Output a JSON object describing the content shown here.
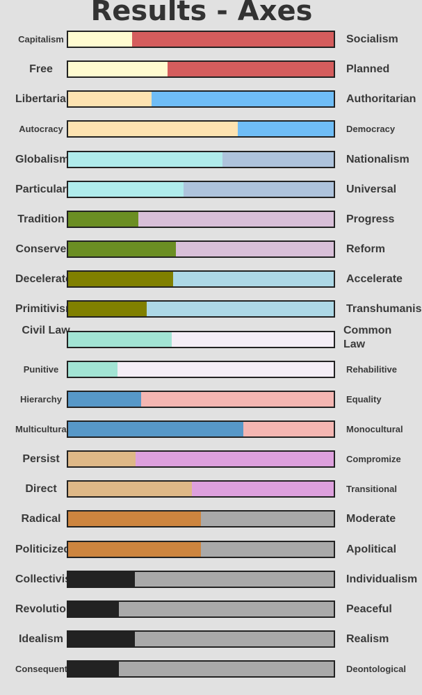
{
  "title": "Results - Axes",
  "chart_data": {
    "type": "bar",
    "title": "Results - Axes",
    "xlim": [
      0,
      100
    ],
    "rows": [
      {
        "left": "Capitalism",
        "right": "Socialism",
        "value": 24,
        "left_color": "#fffbd0",
        "right_color": "#d45d5d"
      },
      {
        "left": "Free",
        "right": "Planned",
        "value": 37.5,
        "left_color": "#fffbd0",
        "right_color": "#d45d5d"
      },
      {
        "left": "Libertarian",
        "right": "Authoritarian",
        "value": 31.5,
        "left_color": "#fde3b1",
        "right_color": "#6fbdf6"
      },
      {
        "left": "Autocracy",
        "right": "Democracy",
        "value": 64,
        "left_color": "#fde3b1",
        "right_color": "#6fbdf6"
      },
      {
        "left": "Globalism",
        "right": "Nationalism",
        "value": 58,
        "left_color": "#b0ecec",
        "right_color": "#aec3dc"
      },
      {
        "left": "Particular",
        "right": "Universal",
        "value": 43.5,
        "left_color": "#b0ecec",
        "right_color": "#aec3dc"
      },
      {
        "left": "Tradition",
        "right": "Progress",
        "value": 26.5,
        "left_color": "#6b8e23",
        "right_color": "#d8bfd8"
      },
      {
        "left": "Conserve",
        "right": "Reform",
        "value": 40.5,
        "left_color": "#6b8e23",
        "right_color": "#d8bfd8"
      },
      {
        "left": "Decelerate",
        "right": "Accelerate",
        "value": 39.5,
        "left_color": "#808000",
        "right_color": "#add8e6"
      },
      {
        "left": "Primitivism",
        "right": "Transhumanism",
        "value": 29.5,
        "left_color": "#808000",
        "right_color": "#add8e6"
      },
      {
        "left": "Civil Law",
        "right": "Common Law",
        "value": 39,
        "left_color": "#a2e4d4",
        "right_color": "#f4eef6"
      },
      {
        "left": "Punitive",
        "right": "Rehabilitive",
        "value": 18.5,
        "left_color": "#a2e4d4",
        "right_color": "#f4eef6"
      },
      {
        "left": "Hierarchy",
        "right": "Equality",
        "value": 27.5,
        "left_color": "#5798c8",
        "right_color": "#f4b6b2"
      },
      {
        "left": "Multicultural",
        "right": "Monocultural",
        "value": 66,
        "left_color": "#5798c8",
        "right_color": "#f4b6b2"
      },
      {
        "left": "Persist",
        "right": "Compromize",
        "value": 25.5,
        "left_color": "#deb887",
        "right_color": "#dda0dd"
      },
      {
        "left": "Direct",
        "right": "Transitional",
        "value": 46.5,
        "left_color": "#deb887",
        "right_color": "#dda0dd"
      },
      {
        "left": "Radical",
        "right": "Moderate",
        "value": 50,
        "left_color": "#cd853f",
        "right_color": "#a9a9a9"
      },
      {
        "left": "Politicized",
        "right": "Apolitical",
        "value": 50,
        "left_color": "#cd853f",
        "right_color": "#a9a9a9"
      },
      {
        "left": "Collectivism",
        "right": "Individualism",
        "value": 25,
        "left_color": "#222222",
        "right_color": "#a9a9a9"
      },
      {
        "left": "Revolution",
        "right": "Peaceful",
        "value": 19,
        "left_color": "#222222",
        "right_color": "#a9a9a9"
      },
      {
        "left": "Idealism",
        "right": "Realism",
        "value": 25,
        "left_color": "#222222",
        "right_color": "#a9a9a9"
      },
      {
        "left": "Consequentalism",
        "right": "Deontological",
        "value": 19,
        "left_color": "#222222",
        "right_color": "#a9a9a9"
      }
    ]
  }
}
